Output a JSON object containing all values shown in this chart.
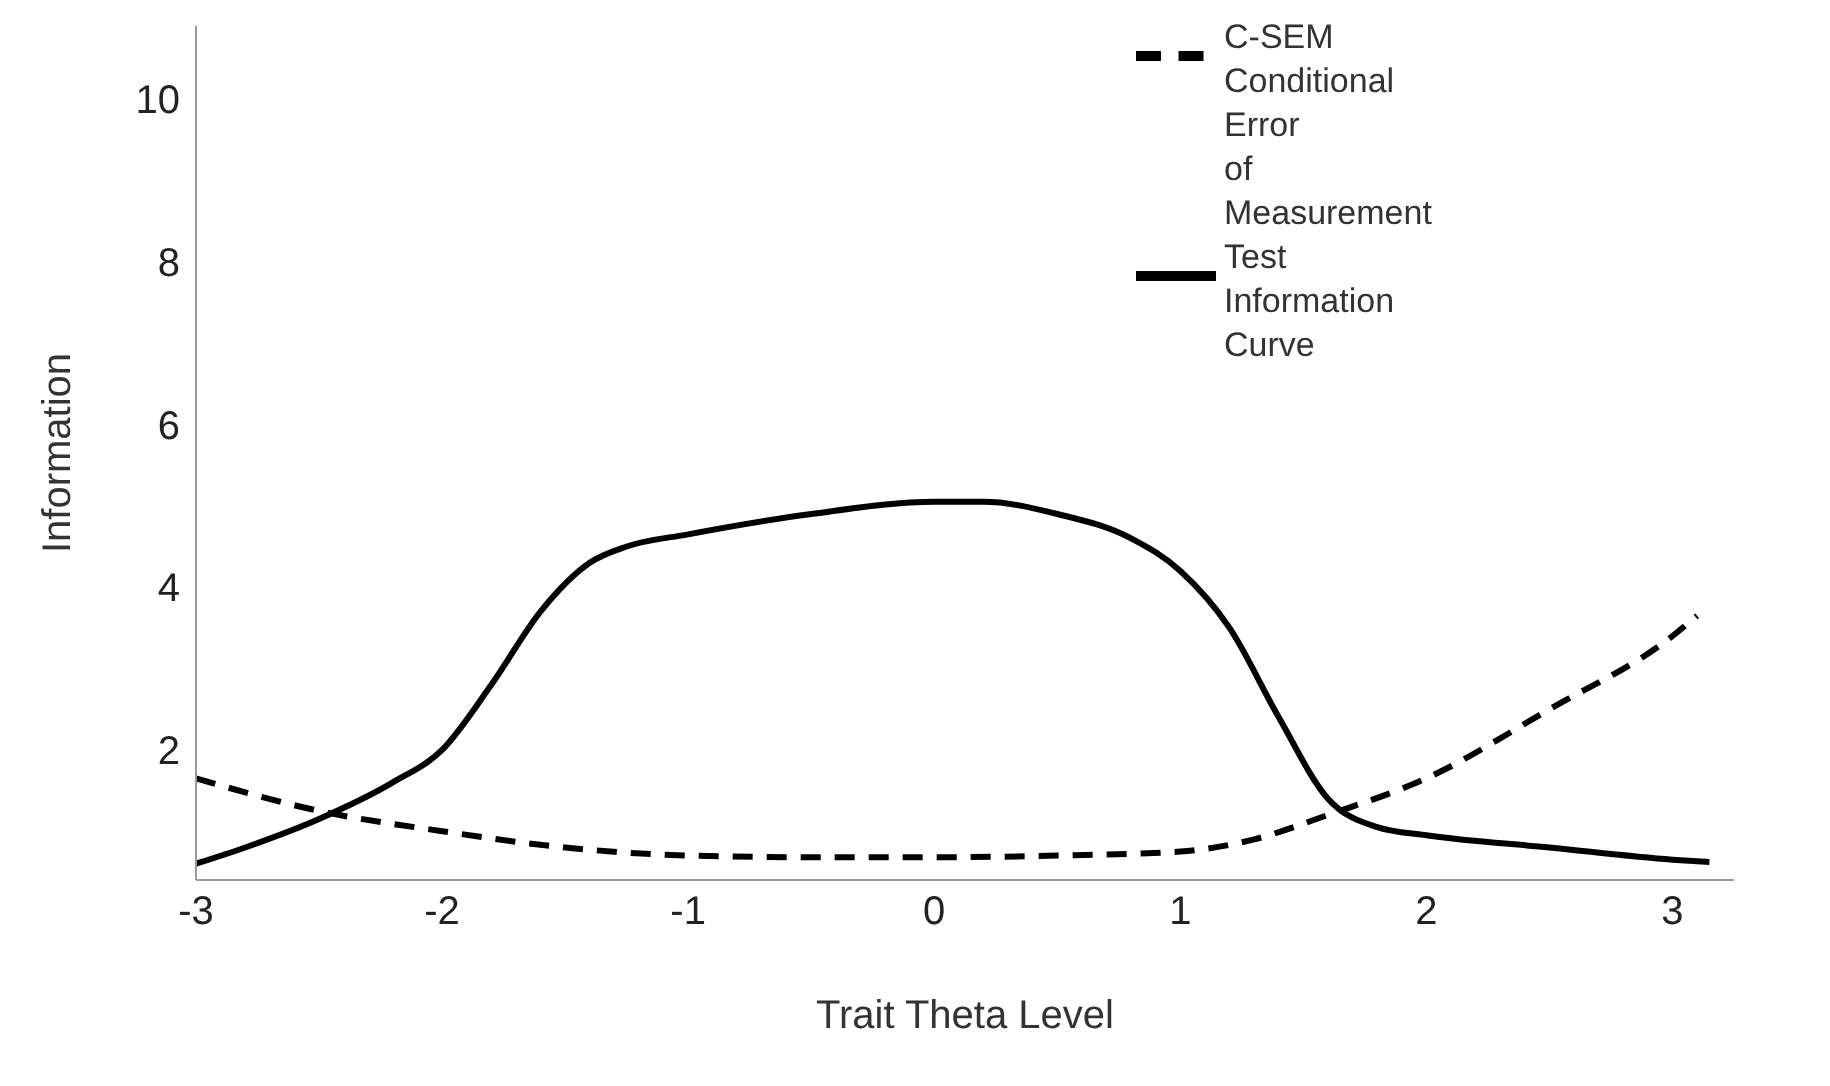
{
  "chart_data": {
    "type": "line",
    "xlabel": "Trait Theta Level",
    "ylabel": "Information",
    "xlim": [
      -3,
      3.25
    ],
    "xticks": [
      -3,
      -2,
      -1,
      0,
      1,
      2,
      3
    ],
    "ylim": [
      0.4,
      10.9
    ],
    "yticks": [
      2,
      4,
      6,
      8,
      10
    ],
    "grid": false,
    "legend": "top right",
    "marker": "none",
    "series": [
      {
        "name": "Test Information Curve",
        "color": "#000000",
        "line_style": "solid",
        "x": [
          -3,
          -2.8,
          -2.5,
          -2.2,
          -2,
          -1.8,
          -1.6,
          -1.4,
          -1.25,
          -1,
          -0.5,
          0,
          0.2,
          0.5,
          0.8,
          1,
          1.2,
          1.4,
          1.6,
          1.8,
          2,
          2.5,
          3,
          3.15
        ],
        "values": [
          0.6,
          0.8,
          1.15,
          1.6,
          2.0,
          2.8,
          3.7,
          4.3,
          4.5,
          4.65,
          4.9,
          5.05,
          5.05,
          4.9,
          4.6,
          4.2,
          3.5,
          2.4,
          1.4,
          1.05,
          0.95,
          0.8,
          0.65,
          0.62
        ]
      },
      {
        "name": "C-SEM Conditional Error\nof Measurement",
        "color": "#000000",
        "line_style": "dashed",
        "x": [
          -3,
          -2.5,
          -2,
          -1.5,
          -1,
          -0.5,
          0,
          0.5,
          1,
          1.3,
          1.6,
          2,
          2.5,
          3,
          3.1
        ],
        "values": [
          1.65,
          1.25,
          1.0,
          0.8,
          0.7,
          0.68,
          0.68,
          0.7,
          0.75,
          0.9,
          1.2,
          1.65,
          2.5,
          3.4,
          3.65
        ]
      }
    ]
  }
}
